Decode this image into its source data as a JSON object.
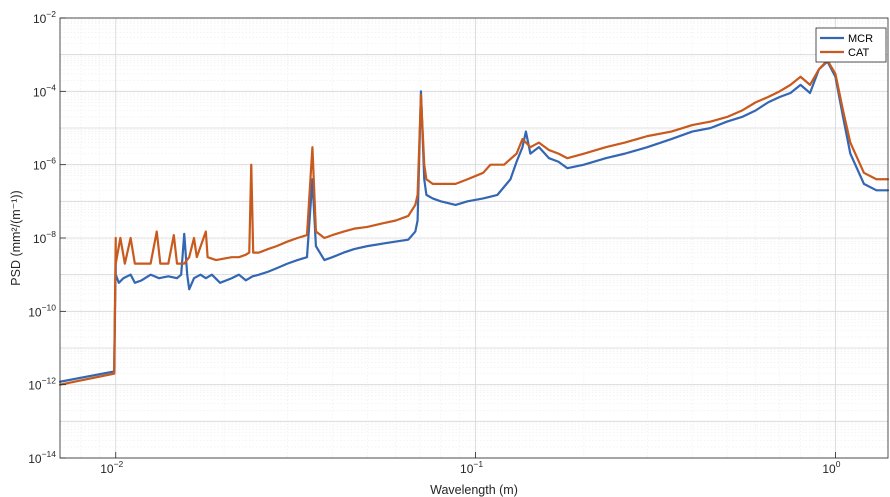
{
  "chart_data": {
    "type": "line",
    "title": "",
    "xlabel": "Wavelength (m)",
    "ylabel": "PSD (mm²/(m⁻¹))",
    "xscale": "log",
    "yscale": "log",
    "xlim": [
      0.007,
      1.4
    ],
    "ylim": [
      1e-14,
      0.01
    ],
    "grid": "major and minor",
    "legend_position": "top-right",
    "x_ticks": [
      {
        "value": 0.01,
        "base": "10",
        "exp": "−2"
      },
      {
        "value": 0.1,
        "base": "10",
        "exp": "−1"
      },
      {
        "value": 1,
        "base": "10",
        "exp": "0"
      }
    ],
    "y_ticks": [
      {
        "value": 0.01,
        "base": "10",
        "exp": "−2"
      },
      {
        "value": 0.0001,
        "base": "10",
        "exp": "−4"
      },
      {
        "value": 1e-06,
        "base": "10",
        "exp": "−6"
      },
      {
        "value": 1e-08,
        "base": "10",
        "exp": "−8"
      },
      {
        "value": 1e-10,
        "base": "10",
        "exp": "−10"
      },
      {
        "value": 1e-12,
        "base": "10",
        "exp": "−12"
      },
      {
        "value": 1e-14,
        "base": "10",
        "exp": "−14"
      }
    ],
    "series": [
      {
        "name": "MCR",
        "color": "#3366b3",
        "points": [
          [
            0.007,
            1.2e-12
          ],
          [
            0.0099,
            2.3e-12
          ],
          [
            0.01,
            3e-09
          ],
          [
            0.01,
            1e-09
          ],
          [
            0.0102,
            6e-10
          ],
          [
            0.0105,
            8e-10
          ],
          [
            0.011,
            1e-09
          ],
          [
            0.0113,
            6e-10
          ],
          [
            0.0118,
            7e-10
          ],
          [
            0.0125,
            1e-09
          ],
          [
            0.0132,
            8e-10
          ],
          [
            0.014,
            9e-10
          ],
          [
            0.0148,
            8e-10
          ],
          [
            0.0152,
            1e-09
          ],
          [
            0.0155,
            1.3e-08
          ],
          [
            0.0158,
            1e-09
          ],
          [
            0.016,
            4e-10
          ],
          [
            0.0165,
            8e-10
          ],
          [
            0.0172,
            1e-09
          ],
          [
            0.0178,
            8e-10
          ],
          [
            0.0185,
            1e-09
          ],
          [
            0.0195,
            6e-10
          ],
          [
            0.021,
            8e-10
          ],
          [
            0.022,
            1e-09
          ],
          [
            0.023,
            7e-10
          ],
          [
            0.024,
            9e-10
          ],
          [
            0.025,
            1e-09
          ],
          [
            0.0265,
            1.2e-09
          ],
          [
            0.028,
            1.5e-09
          ],
          [
            0.03,
            2e-09
          ],
          [
            0.032,
            2.5e-09
          ],
          [
            0.034,
            3e-09
          ],
          [
            0.0352,
            4e-07
          ],
          [
            0.036,
            6e-09
          ],
          [
            0.038,
            2.5e-09
          ],
          [
            0.04,
            3e-09
          ],
          [
            0.043,
            4e-09
          ],
          [
            0.046,
            5e-09
          ],
          [
            0.05,
            6e-09
          ],
          [
            0.055,
            7e-09
          ],
          [
            0.06,
            8e-09
          ],
          [
            0.065,
            9e-09
          ],
          [
            0.068,
            1.5e-08
          ],
          [
            0.069,
            3e-08
          ],
          [
            0.0705,
            0.0001
          ],
          [
            0.072,
            4e-07
          ],
          [
            0.073,
            1.5e-07
          ],
          [
            0.076,
            1.2e-07
          ],
          [
            0.08,
            1e-07
          ],
          [
            0.088,
            8e-08
          ],
          [
            0.095,
            1e-07
          ],
          [
            0.105,
            1.2e-07
          ],
          [
            0.115,
            1.5e-07
          ],
          [
            0.125,
            4e-07
          ],
          [
            0.13,
            1.2e-06
          ],
          [
            0.135,
            3e-06
          ],
          [
            0.138,
            8e-06
          ],
          [
            0.142,
            2e-06
          ],
          [
            0.15,
            3e-06
          ],
          [
            0.16,
            1.5e-06
          ],
          [
            0.17,
            1.2e-06
          ],
          [
            0.18,
            8e-07
          ],
          [
            0.2,
            1e-06
          ],
          [
            0.23,
            1.5e-06
          ],
          [
            0.26,
            2e-06
          ],
          [
            0.3,
            3e-06
          ],
          [
            0.35,
            5e-06
          ],
          [
            0.4,
            8e-06
          ],
          [
            0.45,
            1e-05
          ],
          [
            0.5,
            1.5e-05
          ],
          [
            0.55,
            2e-05
          ],
          [
            0.6,
            3e-05
          ],
          [
            0.65,
            5e-05
          ],
          [
            0.7,
            7e-05
          ],
          [
            0.75,
            9e-05
          ],
          [
            0.8,
            0.00015
          ],
          [
            0.85,
            9e-05
          ],
          [
            0.9,
            0.0004
          ],
          [
            0.95,
            0.00065
          ],
          [
            1,
            0.00025
          ],
          [
            1.05,
            2e-05
          ],
          [
            1.1,
            2e-06
          ],
          [
            1.2,
            3e-07
          ],
          [
            1.3,
            2e-07
          ],
          [
            1.4,
            2e-07
          ]
        ]
      },
      {
        "name": "CAT",
        "color": "#c85a1e",
        "points": [
          [
            0.007,
            1e-12
          ],
          [
            0.0099,
            2e-12
          ],
          [
            0.01,
            1e-08
          ],
          [
            0.01,
            2e-09
          ],
          [
            0.0103,
            1e-08
          ],
          [
            0.0106,
            2e-09
          ],
          [
            0.011,
            1e-08
          ],
          [
            0.0113,
            2e-09
          ],
          [
            0.0118,
            2e-09
          ],
          [
            0.0125,
            2e-09
          ],
          [
            0.013,
            1.5e-08
          ],
          [
            0.0133,
            2e-09
          ],
          [
            0.014,
            2e-09
          ],
          [
            0.0145,
            1.2e-08
          ],
          [
            0.0148,
            2e-09
          ],
          [
            0.0155,
            2e-09
          ],
          [
            0.016,
            3e-09
          ],
          [
            0.0165,
            1e-08
          ],
          [
            0.0168,
            3e-09
          ],
          [
            0.0178,
            1.5e-08
          ],
          [
            0.018,
            3e-09
          ],
          [
            0.019,
            2.5e-09
          ],
          [
            0.021,
            3e-09
          ],
          [
            0.022,
            3e-09
          ],
          [
            0.023,
            3.5e-09
          ],
          [
            0.0235,
            4e-09
          ],
          [
            0.0238,
            1e-06
          ],
          [
            0.0241,
            4e-09
          ],
          [
            0.025,
            4e-09
          ],
          [
            0.0265,
            5e-09
          ],
          [
            0.028,
            6e-09
          ],
          [
            0.03,
            8e-09
          ],
          [
            0.032,
            1e-08
          ],
          [
            0.034,
            1.2e-08
          ],
          [
            0.0352,
            3e-06
          ],
          [
            0.036,
            1.5e-08
          ],
          [
            0.038,
            1e-08
          ],
          [
            0.04,
            1.2e-08
          ],
          [
            0.043,
            1.5e-08
          ],
          [
            0.046,
            1.8e-08
          ],
          [
            0.05,
            2e-08
          ],
          [
            0.055,
            2.5e-08
          ],
          [
            0.06,
            3e-08
          ],
          [
            0.065,
            4e-08
          ],
          [
            0.068,
            8e-08
          ],
          [
            0.069,
            1.5e-07
          ],
          [
            0.0705,
            8e-05
          ],
          [
            0.072,
            1e-06
          ],
          [
            0.073,
            4e-07
          ],
          [
            0.076,
            3e-07
          ],
          [
            0.08,
            3e-07
          ],
          [
            0.088,
            3e-07
          ],
          [
            0.095,
            4e-07
          ],
          [
            0.105,
            6e-07
          ],
          [
            0.11,
            1e-06
          ],
          [
            0.12,
            1e-06
          ],
          [
            0.13,
            2e-06
          ],
          [
            0.135,
            5e-06
          ],
          [
            0.142,
            3e-06
          ],
          [
            0.15,
            4e-06
          ],
          [
            0.16,
            2.5e-06
          ],
          [
            0.17,
            2e-06
          ],
          [
            0.18,
            1.5e-06
          ],
          [
            0.2,
            2e-06
          ],
          [
            0.23,
            3e-06
          ],
          [
            0.26,
            4e-06
          ],
          [
            0.3,
            6e-06
          ],
          [
            0.35,
            8e-06
          ],
          [
            0.4,
            1.2e-05
          ],
          [
            0.45,
            1.5e-05
          ],
          [
            0.5,
            2e-05
          ],
          [
            0.55,
            3e-05
          ],
          [
            0.6,
            5e-05
          ],
          [
            0.65,
            7e-05
          ],
          [
            0.7,
            0.0001
          ],
          [
            0.75,
            0.00015
          ],
          [
            0.8,
            0.00025
          ],
          [
            0.85,
            0.00015
          ],
          [
            0.9,
            0.0004
          ],
          [
            0.95,
            0.0007
          ],
          [
            1,
            0.0003
          ],
          [
            1.05,
            3e-05
          ],
          [
            1.1,
            4e-06
          ],
          [
            1.2,
            6e-07
          ],
          [
            1.3,
            4e-07
          ],
          [
            1.4,
            4e-07
          ]
        ]
      }
    ]
  }
}
